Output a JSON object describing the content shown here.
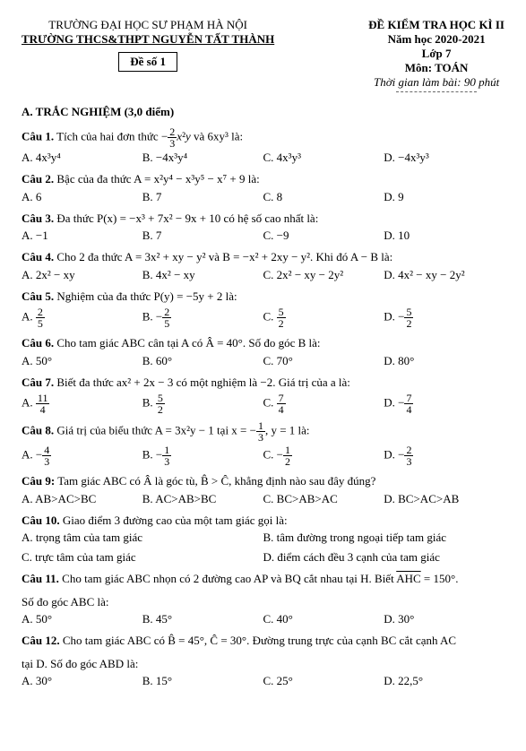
{
  "header": {
    "uni": "TRƯỜNG ĐẠI HỌC SƯ PHẠM HÀ NỘI",
    "school": "TRƯỜNG THCS&THPT NGUYỄN TẤT THÀNH",
    "de": "Đề số 1",
    "title": "ĐỀ KIỂM TRA HỌC KÌ II",
    "year": "Năm học 2020-2021",
    "grade": "Lớp 7",
    "subject": "Môn: TOÁN",
    "time": "Thời gian làm bài: 90 phút"
  },
  "sectionA": "A. TRẮC NGHIỆM (3,0 điểm)",
  "q1": {
    "text_a": "Câu 1.",
    "text_b": " Tích của hai đơn thức ",
    "text_c": " và 6xy³ là:",
    "A": "A. 4x³y⁴",
    "B": "B. −4x³y⁴",
    "C": "C. 4x³y³",
    "D": "D. −4x³y³"
  },
  "q2": {
    "text_a": "Câu 2.",
    "text_b": " Bậc của đa thức A = x²y⁴ − x³y⁵ − x⁷ + 9 là:",
    "A": "A. 6",
    "B": "B. 7",
    "C": "C. 8",
    "D": "D. 9"
  },
  "q3": {
    "text_a": "Câu 3.",
    "text_b": " Đa thức P(x) = −x³ + 7x² − 9x + 10 có hệ số cao nhất là:",
    "A": "A. −1",
    "B": "B. 7",
    "C": "C. −9",
    "D": "D. 10"
  },
  "q4": {
    "text_a": "Câu 4.",
    "text_b": " Cho 2 đa thức A = 3x² + xy − y² và B = −x² + 2xy − y². Khi đó A − B là:",
    "A": "A. 2x² − xy",
    "B": "B. 4x² − xy",
    "C": "C. 2x² − xy − 2y²",
    "D": "D. 4x² − xy − 2y²"
  },
  "q5": {
    "text_a": "Câu 5.",
    "text_b": " Nghiệm của đa thức P(y) = −5y + 2 là:",
    "A": "A.",
    "B": "B.",
    "C": "C.",
    "D": "D."
  },
  "q6": {
    "text_a": "Câu 6.",
    "text_b": " Cho tam giác ABC cân tại A có Â = 40°. Số đo góc B là:",
    "A": "A. 50°",
    "B": "B. 60°",
    "C": "C. 70°",
    "D": "D. 80°"
  },
  "q7": {
    "text_a": "Câu 7.",
    "text_b": " Biết đa thức ax² + 2x − 3 có một nghiệm là −2. Giá trị của a là:",
    "A": "A.",
    "B": "B.",
    "C": "C.",
    "D": "D."
  },
  "q8": {
    "text_a": "Câu 8.",
    "text_b": " Giá trị của biểu thức A = 3x²y − 1 tại x = −",
    "text_c": ", y = 1 là:",
    "A": "A.",
    "B": "B.",
    "C": "C.",
    "D": "D."
  },
  "q9": {
    "text_a": "Câu 9:",
    "text_b": " Tam giác ABC có Â là góc tù, B̂ > Ĉ, khẳng định nào sau đây đúng?",
    "A": "A. AB>AC>BC",
    "B": "B. AC>AB>BC",
    "C": "C. BC>AB>AC",
    "D": "D. BC>AC>AB"
  },
  "q10": {
    "text_a": "Câu 10.",
    "text_b": " Giao điểm 3 đường cao của một tam giác gọi là:",
    "A": "A. trọng tâm của tam giác",
    "B": "B. tâm đường trong ngoại tiếp tam giác",
    "C": "C. trực tâm của tam giác",
    "D": "D. điểm cách đều 3 cạnh của tam giác"
  },
  "q11": {
    "text_a": "Câu 11.",
    "text_b": " Cho tam giác ABC nhọn có 2 đường cao AP và BQ cắt nhau tại H. Biết ",
    "ahc": "AHC",
    "text_c": " = 150°.",
    "text_d": "Số đo góc ABC là:",
    "A": "A. 50°",
    "B": "B. 45°",
    "C": "C. 40°",
    "D": "D. 30°"
  },
  "q12": {
    "text_a": "Câu 12.",
    "text_b": " Cho tam giác ABC có B̂ = 45°, Ĉ = 30°. Đường trung trực của cạnh BC cắt cạnh AC",
    "text_c": "tại D. Số đo góc ABD là:",
    "A": "A. 30°",
    "B": "B. 15°",
    "C": "C. 25°",
    "D": "D. 22,5°"
  }
}
